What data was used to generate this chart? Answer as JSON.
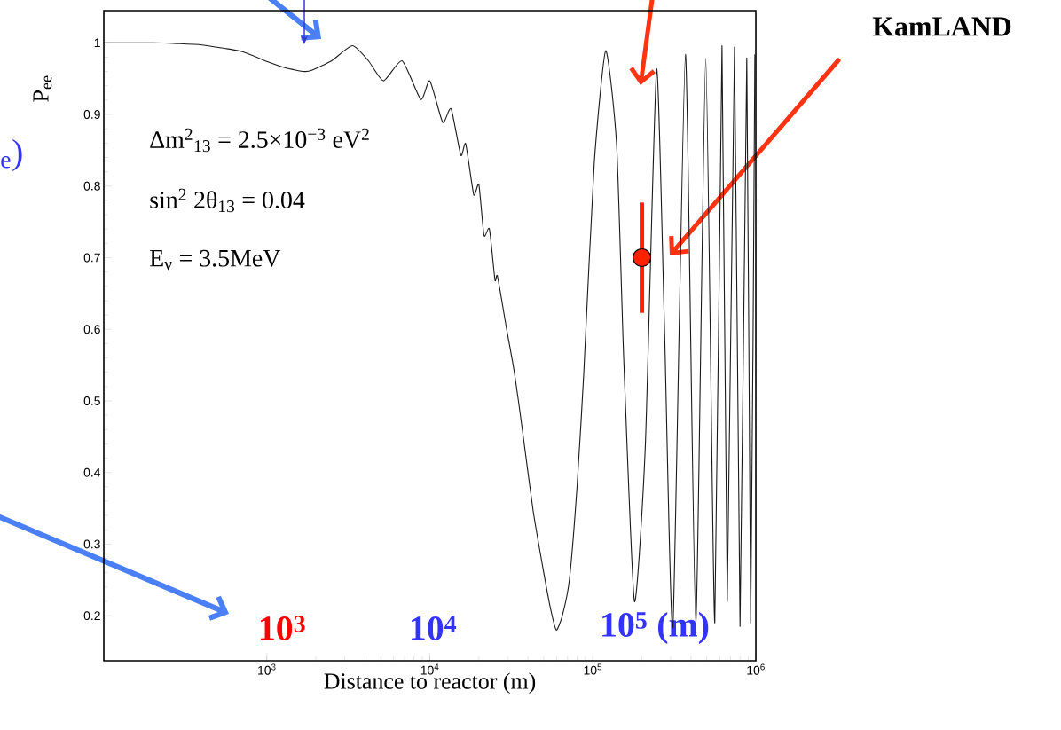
{
  "chart_data": {
    "type": "line",
    "xlabel": "Distance to reactor (m)",
    "ylabel": "P$_{ee}$",
    "log": "x",
    "xlim": [
      100,
      1000000
    ],
    "ylim": [
      0.137,
      1.045
    ],
    "xticks": [
      {
        "value": 1000,
        "label": "10$^{3}$"
      },
      {
        "value": 10000,
        "label": "10$^{4}$"
      },
      {
        "value": 100000,
        "label": "10$^{5}$"
      },
      {
        "value": 1000000,
        "label": "10$^{6}$"
      }
    ],
    "yticks": [
      0.2,
      0.3,
      0.4,
      0.5,
      0.6,
      0.7,
      0.8,
      0.9,
      1
    ],
    "annotations": [
      "Δm$^{2}$$_{13}$ = 2.5×10$^{−3}$ eV$^{2}$",
      "sin$^{2}$ 2θ$_{13}$ = 0.04",
      "E$_{ν}$ = 3.5MeV",
      "KamLAND",
      "10$^{3}$",
      "10$^{4}$",
      "10$^{5}$ (m)",
      "$_{e}$)"
    ],
    "series": [
      {
        "type": "line",
        "color": "#1a1a1a",
        "x": [
          100,
          200,
          280,
          400,
          700,
          1000,
          1300,
          1700,
          1900,
          2500,
          3350,
          4200,
          5200,
          6760,
          8800,
          10000,
          12000,
          13500,
          15500,
          16600,
          18600,
          20000,
          21500,
          23200,
          25100,
          26000,
          29500,
          33000,
          36800,
          43000,
          50000,
          55000,
          59700,
          65000,
          71800,
          80000,
          88000,
          102000,
          120000,
          140000,
          155000,
          180000,
          210000,
          246000,
          275000,
          310000,
          370000,
          428000,
          493000,
          560000,
          620000,
          668000,
          740000,
          800000,
          880000,
          930000,
          986000
        ],
        "values": [
          1.0,
          1.0,
          0.999,
          0.997,
          0.988,
          0.974,
          0.965,
          0.96,
          0.962,
          0.975,
          0.996,
          0.975,
          0.947,
          0.975,
          0.921,
          0.947,
          0.889,
          0.908,
          0.843,
          0.859,
          0.788,
          0.802,
          0.731,
          0.74,
          0.669,
          0.674,
          0.602,
          0.54,
          0.463,
          0.347,
          0.26,
          0.21,
          0.18,
          0.2,
          0.25,
          0.38,
          0.539,
          0.832,
          0.989,
          0.857,
          0.554,
          0.22,
          0.438,
          0.963,
          0.605,
          0.185,
          0.984,
          0.19,
          0.979,
          0.19,
          0.996,
          0.22,
          0.994,
          0.185,
          0.979,
          0.19,
          0.984
        ]
      },
      {
        "type": "scatter",
        "color": "#ff2200",
        "x": [
          200000
        ],
        "values": [
          0.7
        ],
        "errors": [
          0.077
        ]
      }
    ]
  }
}
